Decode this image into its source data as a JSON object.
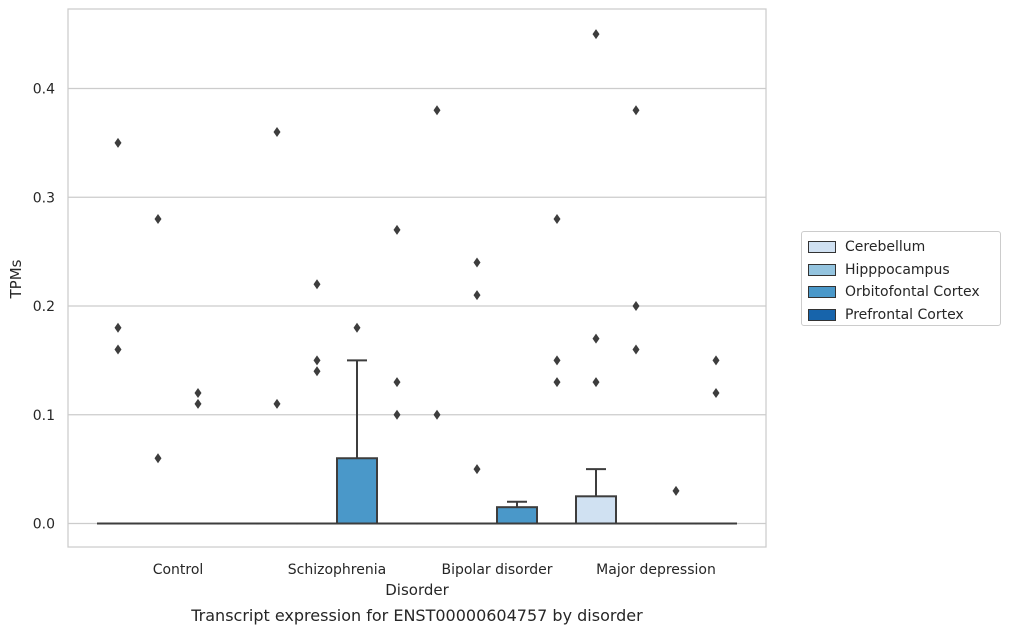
{
  "chart_data": {
    "type": "boxplot",
    "xlabel": "Disorder",
    "ylabel": "TPMs",
    "caption": "Transcript expression for ENST00000604757 by disorder",
    "categories": [
      "Control",
      "Schizophrenia",
      "Bipolar disorder",
      "Major depression"
    ],
    "ylim": [
      -0.022,
      0.473
    ],
    "yticks": [
      "0.0",
      "0.1",
      "0.2",
      "0.3",
      "0.4"
    ],
    "yticks_values": [
      0.0,
      0.1,
      0.2,
      0.3,
      0.4
    ],
    "grid": "horizontal",
    "legend_placement": "right",
    "series": [
      {
        "name": "Cerebellum",
        "color": "#d0e1f2",
        "boxes": [
          {
            "q1": 0,
            "median": 0,
            "q3": 0,
            "whisker_low": 0,
            "whisker_high": 0
          },
          {
            "q1": 0,
            "median": 0,
            "q3": 0,
            "whisker_low": 0,
            "whisker_high": 0
          },
          {
            "q1": 0,
            "median": 0,
            "q3": 0,
            "whisker_low": 0,
            "whisker_high": 0
          },
          {
            "q1": 0,
            "median": 0,
            "q3": 0.025,
            "whisker_low": 0,
            "whisker_high": 0.05
          }
        ],
        "outliers": [
          [
            0.35,
            0.18,
            0.16
          ],
          [
            0.36,
            0.11
          ],
          [
            0.1,
            0.38
          ],
          [
            0.45,
            0.17,
            0.13
          ]
        ]
      },
      {
        "name": "Hipppocampus",
        "color": "#94c4df",
        "boxes": [
          {
            "q1": 0,
            "median": 0,
            "q3": 0,
            "whisker_low": 0,
            "whisker_high": 0
          },
          {
            "q1": 0,
            "median": 0,
            "q3": 0,
            "whisker_low": 0,
            "whisker_high": 0
          },
          {
            "q1": 0,
            "median": 0,
            "q3": 0,
            "whisker_low": 0,
            "whisker_high": 0
          },
          {
            "q1": 0,
            "median": 0,
            "q3": 0,
            "whisker_low": 0,
            "whisker_high": 0
          }
        ],
        "outliers": [
          [
            0.28,
            0.06
          ],
          [
            0.22,
            0.15,
            0.14
          ],
          [
            0.24,
            0.21,
            0.05
          ],
          [
            0.38,
            0.2,
            0.16
          ]
        ]
      },
      {
        "name": "Orbitofontal Cortex",
        "color": "#4a98c9",
        "boxes": [
          {
            "q1": 0,
            "median": 0,
            "q3": 0,
            "whisker_low": 0,
            "whisker_high": 0
          },
          {
            "q1": 0,
            "median": 0,
            "q3": 0.06,
            "whisker_low": 0,
            "whisker_high": 0.15
          },
          {
            "q1": 0,
            "median": 0,
            "q3": 0.015,
            "whisker_low": 0,
            "whisker_high": 0.02
          },
          {
            "q1": 0,
            "median": 0,
            "q3": 0,
            "whisker_low": 0,
            "whisker_high": 0
          }
        ],
        "outliers": [
          [
            0.12,
            0.11
          ],
          [
            0.18
          ],
          [],
          [
            0.03
          ]
        ]
      },
      {
        "name": "Prefrontal Cortex",
        "color": "#1764ab",
        "boxes": [
          {
            "q1": 0,
            "median": 0,
            "q3": 0,
            "whisker_low": 0,
            "whisker_high": 0
          },
          {
            "q1": 0,
            "median": 0,
            "q3": 0,
            "whisker_low": 0,
            "whisker_high": 0
          },
          {
            "q1": 0,
            "median": 0,
            "q3": 0,
            "whisker_low": 0,
            "whisker_high": 0
          },
          {
            "q1": 0,
            "median": 0,
            "q3": 0,
            "whisker_low": 0,
            "whisker_high": 0
          }
        ],
        "outliers": [
          [],
          [
            0.27,
            0.13,
            0.1
          ],
          [
            0.28,
            0.15,
            0.13
          ],
          [
            0.15,
            0.12
          ]
        ]
      }
    ]
  }
}
